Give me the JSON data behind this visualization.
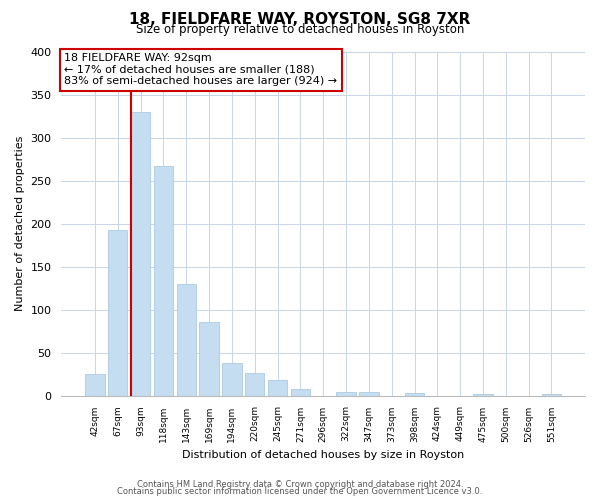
{
  "title": "18, FIELDFARE WAY, ROYSTON, SG8 7XR",
  "subtitle": "Size of property relative to detached houses in Royston",
  "xlabel": "Distribution of detached houses by size in Royston",
  "ylabel": "Number of detached properties",
  "bin_labels": [
    "42sqm",
    "67sqm",
    "93sqm",
    "118sqm",
    "143sqm",
    "169sqm",
    "194sqm",
    "220sqm",
    "245sqm",
    "271sqm",
    "296sqm",
    "322sqm",
    "347sqm",
    "373sqm",
    "398sqm",
    "424sqm",
    "449sqm",
    "475sqm",
    "500sqm",
    "526sqm",
    "551sqm"
  ],
  "bar_values": [
    25,
    193,
    330,
    267,
    130,
    86,
    38,
    26,
    18,
    8,
    0,
    4,
    4,
    0,
    3,
    0,
    0,
    2,
    0,
    0,
    2
  ],
  "bar_color": "#c5ddf0",
  "bar_edge_color": "#a0c4dc",
  "vline_index": 2,
  "vline_color": "#cc0000",
  "annotation_text": "18 FIELDFARE WAY: 92sqm\n← 17% of detached houses are smaller (188)\n83% of semi-detached houses are larger (924) →",
  "annotation_box_color": "#ffffff",
  "annotation_border_color": "#cc0000",
  "ylim": [
    0,
    400
  ],
  "yticks": [
    0,
    50,
    100,
    150,
    200,
    250,
    300,
    350,
    400
  ],
  "footer_line1": "Contains HM Land Registry data © Crown copyright and database right 2024.",
  "footer_line2": "Contains public sector information licensed under the Open Government Licence v3.0.",
  "background_color": "#ffffff",
  "grid_color": "#c8d4e8"
}
